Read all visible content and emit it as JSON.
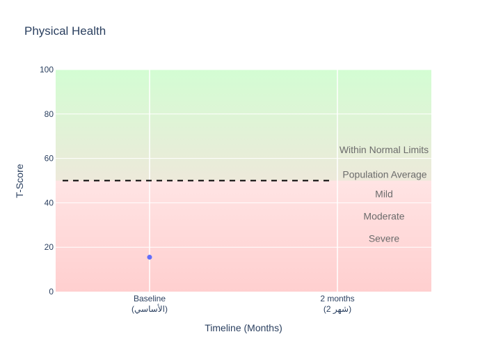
{
  "chart_data": {
    "type": "scatter",
    "title": "Physical Health",
    "xlabel": "Timeline (Months)",
    "ylabel": "T-Score",
    "ylim": [
      0,
      100
    ],
    "yticks": [
      0,
      20,
      40,
      60,
      80,
      100
    ],
    "categories": [
      {
        "line1": "Baseline",
        "line2": "(الأساسي)"
      },
      {
        "line1": "2 months",
        "line2": "(شهر 2)"
      }
    ],
    "series": [
      {
        "x": "Baseline",
        "y": 15.5,
        "color": "#636efa"
      }
    ],
    "reference_line": {
      "y": 50,
      "label": "Population Average",
      "style": "dashed",
      "color": "#000000"
    },
    "band_labels": [
      {
        "text": "Within Normal Limits",
        "y": 64
      },
      {
        "text": "Mild",
        "y": 44
      },
      {
        "text": "Moderate",
        "y": 34
      },
      {
        "text": "Severe",
        "y": 24
      }
    ],
    "background": {
      "top_color": "#d3fdd3",
      "mid_color": "#ffe4e4",
      "bottom_color": "#ffcfcf",
      "split_y": 50
    },
    "grid": true
  }
}
